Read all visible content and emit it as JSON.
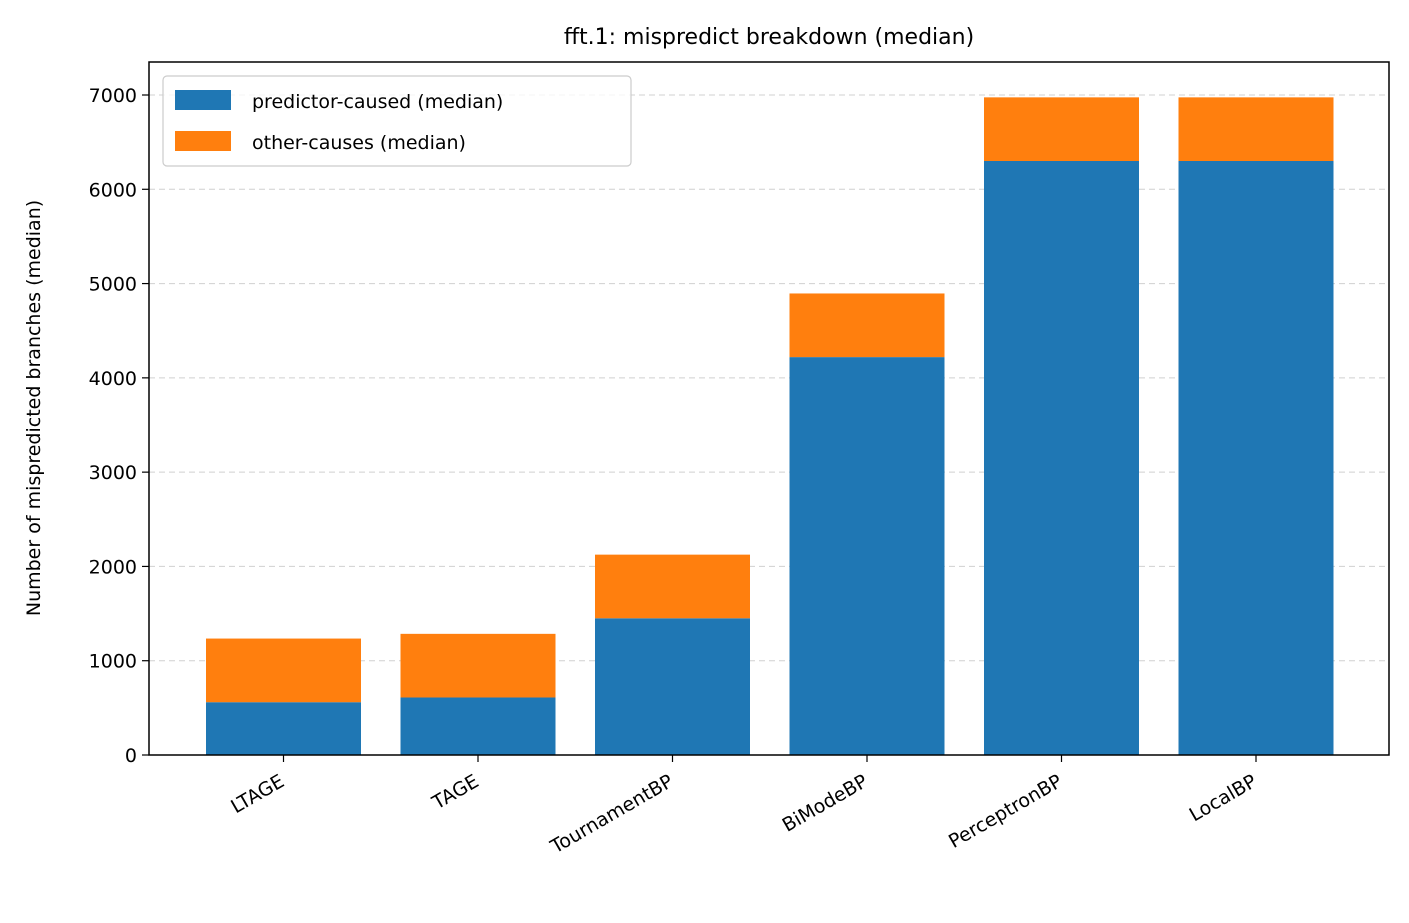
{
  "chart_data": {
    "type": "bar",
    "stacked": true,
    "title": "fft.1: mispredict breakdown (median)",
    "xlabel": "",
    "ylabel": "Number of mispredicted branches (median)",
    "categories": [
      "LTAGE",
      "TAGE",
      "TournamentBP",
      "BiModeBP",
      "PerceptronBP",
      "LocalBP"
    ],
    "series": [
      {
        "name": "predictor-caused (median)",
        "color": "#1f77b4",
        "values": [
          560,
          610,
          1450,
          4220,
          6300,
          6300
        ]
      },
      {
        "name": "other-causes (median)",
        "color": "#ff7f0e",
        "values": [
          675,
          675,
          675,
          675,
          675,
          675
        ]
      }
    ],
    "ylim": [
      0,
      7350
    ],
    "yticks": [
      0,
      1000,
      2000,
      3000,
      4000,
      5000,
      6000,
      7000
    ],
    "ytick_labels": [
      "0",
      "1000",
      "2000",
      "3000",
      "4000",
      "5000",
      "6000",
      "7000"
    ],
    "grid": "y-dashed",
    "legend_position": "top-left"
  }
}
